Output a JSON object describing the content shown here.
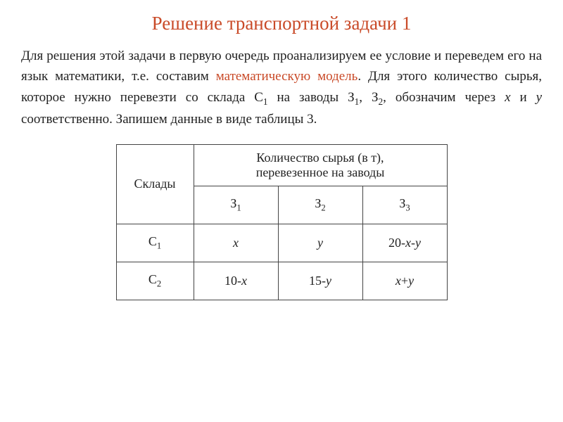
{
  "title": {
    "text": "Решение транспортной задачи 1",
    "color": "#c94a28",
    "fontsize": 27
  },
  "paragraph": {
    "pre": "Для решения этой задачи в первую очередь проанализируем ее условие и переведем его на язык математики, т.е. составим ",
    "highlight_text": "математическую модель",
    "highlight_color": "#c94a28",
    "mid1": ". Для этого количество сырья, которое нужно перевезти со склада С",
    "sub1": "1",
    "mid2": " на заводы З",
    "sub2": "1",
    "mid3": ", З",
    "sub3": "2",
    "mid4": ", обозначим через ",
    "var1": "x",
    "mid5": " и ",
    "var2": "y",
    "post": " соответственно. Запишем данные в виде таблицы 3.",
    "fontsize": 19,
    "text_color": "#222222"
  },
  "table": {
    "border_color": "#444444",
    "header": {
      "col1": "Склады",
      "col2_line1": "Количество сырья (в т),",
      "col2_line2": "перевезенное на заводы"
    },
    "subheader": {
      "c1_main": "З",
      "c1_sub": "1",
      "c2_main": "З",
      "c2_sub": "2",
      "c3_main": "З",
      "c3_sub": "3"
    },
    "rows": [
      {
        "label_main": "С",
        "label_sub": "1",
        "c1_html": "<span class=\"italic\">x</span>",
        "c2_html": "<span class=\"italic\">y</span>",
        "c3_html": "20-<span class=\"italic\">x</span>-<span class=\"italic\">y</span>"
      },
      {
        "label_main": "С",
        "label_sub": "2",
        "c1_html": "10-<span class=\"italic\">x</span>",
        "c2_html": "15-<span class=\"italic\">y</span>",
        "c3_html": "<span class=\"italic\">x</span>+<span class=\"italic\">y</span>"
      }
    ]
  }
}
